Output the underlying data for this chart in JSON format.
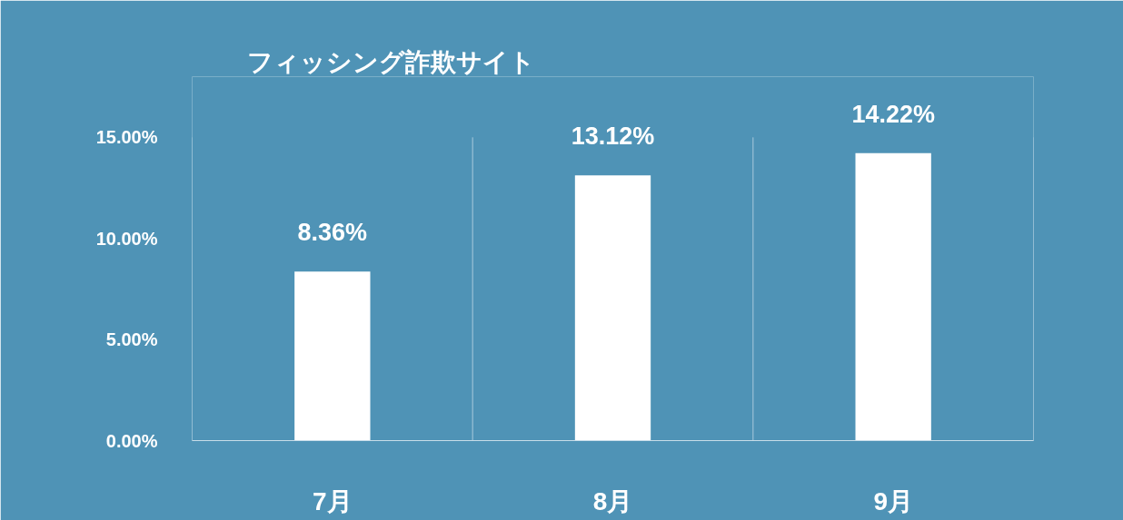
{
  "chart_data": {
    "type": "bar",
    "title": "フィッシング詐欺サイト",
    "categories": [
      "7月",
      "8月",
      "9月"
    ],
    "values": [
      8.36,
      13.12,
      14.22
    ],
    "value_labels": [
      "8.36%",
      "13.12%",
      "14.22%"
    ],
    "color": "#ffffff",
    "ylim": [
      0,
      18
    ],
    "yticks": [
      {
        "value": 0,
        "label": "0.00%"
      },
      {
        "value": 5,
        "label": "5.00%"
      },
      {
        "value": 10,
        "label": "10.00%"
      },
      {
        "value": 15,
        "label": "15.00%"
      }
    ],
    "grid": "x"
  }
}
